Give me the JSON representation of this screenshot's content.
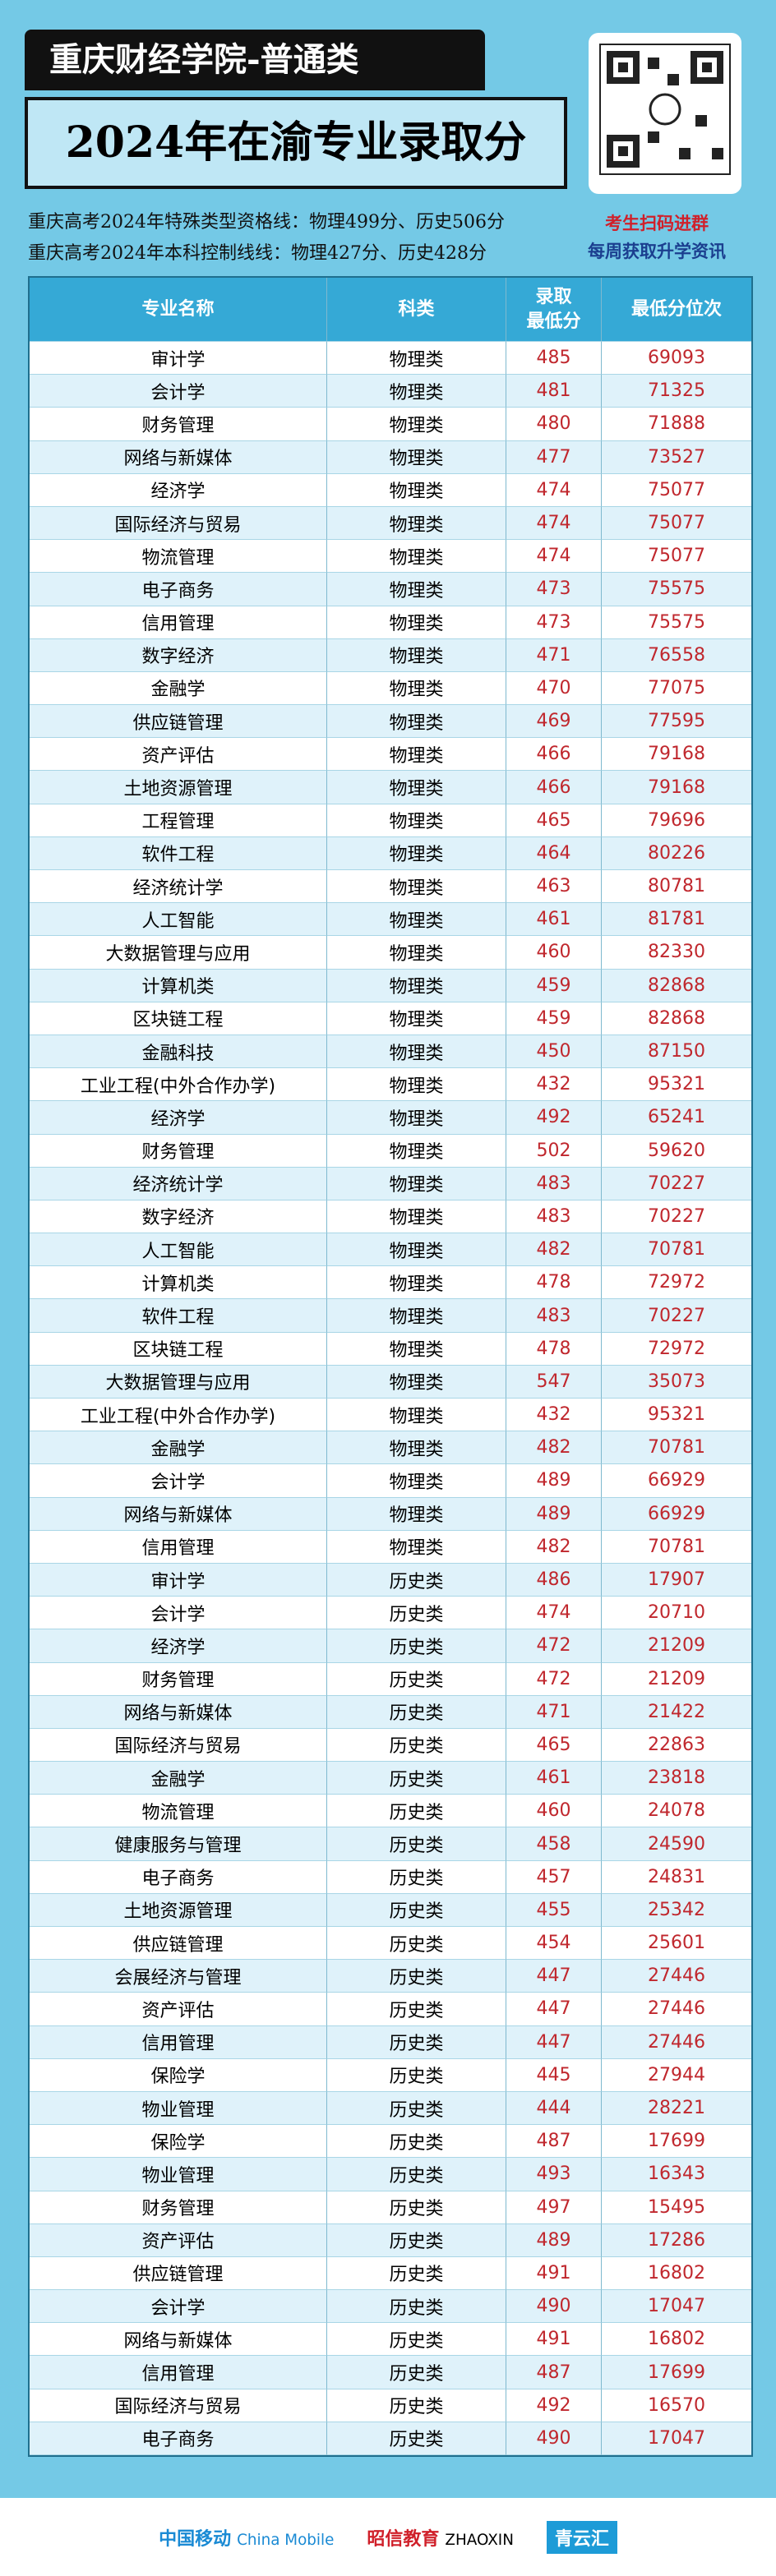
{
  "header": {
    "title": "重庆财经学院-普通类",
    "subtitle": "2024年在渝专业录取分"
  },
  "notes": [
    "重庆高考2024年特殊类型资格线：物理499分、历史506分",
    "重庆高考2024年本科控制线线：物理427分、历史428分"
  ],
  "qr_caption": [
    "考生扫码进群",
    "每周获取升学资讯"
  ],
  "table": {
    "columns": [
      "专业名称",
      "科类",
      "录取\n最低分",
      "最低分位次"
    ],
    "rows": [
      [
        "审计学",
        "物理类",
        485,
        69093
      ],
      [
        "会计学",
        "物理类",
        481,
        71325
      ],
      [
        "财务管理",
        "物理类",
        480,
        71888
      ],
      [
        "网络与新媒体",
        "物理类",
        477,
        73527
      ],
      [
        "经济学",
        "物理类",
        474,
        75077
      ],
      [
        "国际经济与贸易",
        "物理类",
        474,
        75077
      ],
      [
        "物流管理",
        "物理类",
        474,
        75077
      ],
      [
        "电子商务",
        "物理类",
        473,
        75575
      ],
      [
        "信用管理",
        "物理类",
        473,
        75575
      ],
      [
        "数字经济",
        "物理类",
        471,
        76558
      ],
      [
        "金融学",
        "物理类",
        470,
        77075
      ],
      [
        "供应链管理",
        "物理类",
        469,
        77595
      ],
      [
        "资产评估",
        "物理类",
        466,
        79168
      ],
      [
        "土地资源管理",
        "物理类",
        466,
        79168
      ],
      [
        "工程管理",
        "物理类",
        465,
        79696
      ],
      [
        "软件工程",
        "物理类",
        464,
        80226
      ],
      [
        "经济统计学",
        "物理类",
        463,
        80781
      ],
      [
        "人工智能",
        "物理类",
        461,
        81781
      ],
      [
        "大数据管理与应用",
        "物理类",
        460,
        82330
      ],
      [
        "计算机类",
        "物理类",
        459,
        82868
      ],
      [
        "区块链工程",
        "物理类",
        459,
        82868
      ],
      [
        "金融科技",
        "物理类",
        450,
        87150
      ],
      [
        "工业工程(中外合作办学)",
        "物理类",
        432,
        95321
      ],
      [
        "经济学",
        "物理类",
        492,
        65241
      ],
      [
        "财务管理",
        "物理类",
        502,
        59620
      ],
      [
        "经济统计学",
        "物理类",
        483,
        70227
      ],
      [
        "数字经济",
        "物理类",
        483,
        70227
      ],
      [
        "人工智能",
        "物理类",
        482,
        70781
      ],
      [
        "计算机类",
        "物理类",
        478,
        72972
      ],
      [
        "软件工程",
        "物理类",
        483,
        70227
      ],
      [
        "区块链工程",
        "物理类",
        478,
        72972
      ],
      [
        "大数据管理与应用",
        "物理类",
        547,
        35073
      ],
      [
        "工业工程(中外合作办学)",
        "物理类",
        432,
        95321
      ],
      [
        "金融学",
        "物理类",
        482,
        70781
      ],
      [
        "会计学",
        "物理类",
        489,
        66929
      ],
      [
        "网络与新媒体",
        "物理类",
        489,
        66929
      ],
      [
        "信用管理",
        "物理类",
        482,
        70781
      ],
      [
        "审计学",
        "历史类",
        486,
        17907
      ],
      [
        "会计学",
        "历史类",
        474,
        20710
      ],
      [
        "经济学",
        "历史类",
        472,
        21209
      ],
      [
        "财务管理",
        "历史类",
        472,
        21209
      ],
      [
        "网络与新媒体",
        "历史类",
        471,
        21422
      ],
      [
        "国际经济与贸易",
        "历史类",
        465,
        22863
      ],
      [
        "金融学",
        "历史类",
        461,
        23818
      ],
      [
        "物流管理",
        "历史类",
        460,
        24078
      ],
      [
        "健康服务与管理",
        "历史类",
        458,
        24590
      ],
      [
        "电子商务",
        "历史类",
        457,
        24831
      ],
      [
        "土地资源管理",
        "历史类",
        455,
        25342
      ],
      [
        "供应链管理",
        "历史类",
        454,
        25601
      ],
      [
        "会展经济与管理",
        "历史类",
        447,
        27446
      ],
      [
        "资产评估",
        "历史类",
        447,
        27446
      ],
      [
        "信用管理",
        "历史类",
        447,
        27446
      ],
      [
        "保险学",
        "历史类",
        445,
        27944
      ],
      [
        "物业管理",
        "历史类",
        444,
        28221
      ],
      [
        "保险学",
        "历史类",
        487,
        17699
      ],
      [
        "物业管理",
        "历史类",
        493,
        16343
      ],
      [
        "财务管理",
        "历史类",
        497,
        15495
      ],
      [
        "资产评估",
        "历史类",
        489,
        17286
      ],
      [
        "供应链管理",
        "历史类",
        491,
        16802
      ],
      [
        "会计学",
        "历史类",
        490,
        17047
      ],
      [
        "网络与新媒体",
        "历史类",
        491,
        16802
      ],
      [
        "信用管理",
        "历史类",
        487,
        17699
      ],
      [
        "国际经济与贸易",
        "历史类",
        492,
        16570
      ],
      [
        "电子商务",
        "历史类",
        490,
        17047
      ]
    ]
  },
  "footer": [
    "中国移动",
    "China Mobile",
    "昭信教育",
    "ZHAOXIN",
    "青云汇"
  ]
}
